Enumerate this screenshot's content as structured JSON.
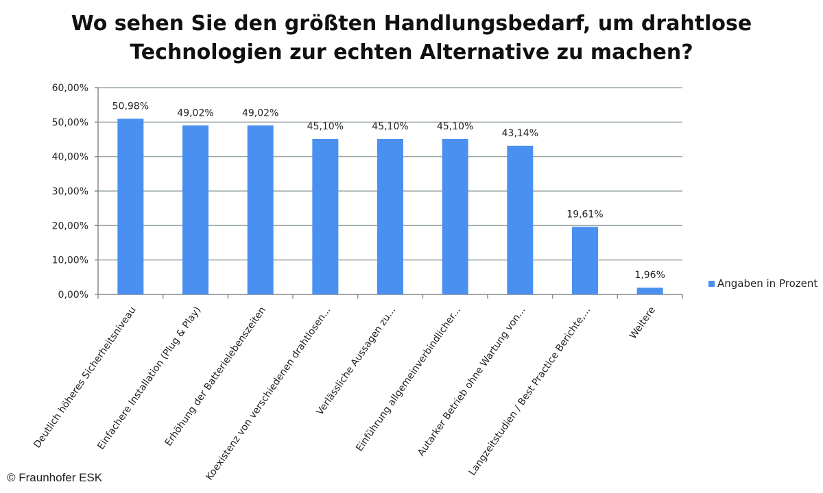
{
  "chart_data": {
    "type": "bar",
    "title_lines": [
      "Wo sehen Sie den größten Handlungsbedarf, um drahtlose",
      "Technologien zur echten Alternative zu machen?"
    ],
    "categories": [
      "Deutlich höheres Sicherheitsniveau",
      "Einfachere Installation (Plug & Play)",
      "Erhöhung der Batterielebenszeiten",
      "Koexistenz von verschiedenen drahtlosen...",
      "Verlässliche Aussagen zu...",
      "Einführung allgemeinverbindlicher...",
      "Autarker Betrieb ohne Wartung von...",
      "Langzeitstudien / Best Practice Berichte,...",
      "Weitere"
    ],
    "series": [
      {
        "name": "Angaben in Prozent",
        "values": [
          50.98,
          49.02,
          49.02,
          45.1,
          45.1,
          45.1,
          43.14,
          19.61,
          1.96
        ],
        "value_labels": [
          "50,98%",
          "49,02%",
          "49,02%",
          "45,10%",
          "45,10%",
          "45,10%",
          "43,14%",
          "19,61%",
          "1,96%"
        ]
      }
    ],
    "ylim": [
      0,
      60
    ],
    "y_ticks": [
      0,
      10,
      20,
      30,
      40,
      50,
      60
    ],
    "y_tick_labels": [
      "0,00%",
      "10,00%",
      "20,00%",
      "30,00%",
      "40,00%",
      "50,00%",
      "60,00%"
    ],
    "xlabel": "",
    "ylabel": "",
    "grid": true,
    "legend_position": "right",
    "bar_color": "#4a90f0",
    "grid_color": "#9aa7a7"
  },
  "copyright": "© Fraunhofer ESK"
}
